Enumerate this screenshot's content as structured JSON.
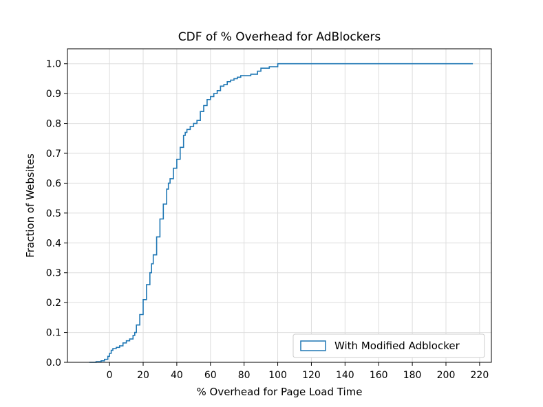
{
  "chart_data": {
    "type": "line",
    "title": "CDF of % Overhead for AdBlockers",
    "xlabel": "% Overhead for Page Load Time",
    "ylabel": "Fraction of Websites",
    "xlim": [
      -25,
      227
    ],
    "ylim": [
      0,
      1.05
    ],
    "xticks": [
      0,
      20,
      40,
      60,
      80,
      100,
      120,
      140,
      160,
      180,
      200,
      220
    ],
    "yticks": [
      0.0,
      0.1,
      0.2,
      0.3,
      0.4,
      0.5,
      0.6,
      0.7,
      0.8,
      0.9,
      1.0
    ],
    "xtick_labels": [
      "0",
      "20",
      "40",
      "60",
      "80",
      "100",
      "120",
      "140",
      "160",
      "180",
      "200",
      "220"
    ],
    "ytick_labels": [
      "0.0",
      "0.1",
      "0.2",
      "0.3",
      "0.4",
      "0.5",
      "0.6",
      "0.7",
      "0.8",
      "0.9",
      "1.0"
    ],
    "grid": true,
    "legend_position": "lower right",
    "line_style": "step",
    "series": [
      {
        "name": "With Modified Adblocker",
        "color": "#1f77b4",
        "x": [
          -12,
          -8,
          -5,
          -3,
          -1,
          0,
          1,
          2,
          4,
          6,
          8,
          10,
          12,
          14,
          15,
          16,
          18,
          20,
          22,
          24,
          25,
          26,
          28,
          30,
          32,
          34,
          35,
          36,
          38,
          40,
          42,
          44,
          45,
          46,
          48,
          50,
          52,
          54,
          56,
          58,
          60,
          62,
          64,
          66,
          68,
          70,
          72,
          74,
          76,
          78,
          80,
          84,
          88,
          90,
          95,
          100,
          110,
          140,
          180,
          216
        ],
        "y": [
          0.0,
          0.002,
          0.005,
          0.01,
          0.02,
          0.03,
          0.04,
          0.046,
          0.05,
          0.055,
          0.065,
          0.072,
          0.078,
          0.09,
          0.1,
          0.125,
          0.16,
          0.21,
          0.26,
          0.3,
          0.33,
          0.36,
          0.42,
          0.48,
          0.53,
          0.58,
          0.6,
          0.615,
          0.65,
          0.68,
          0.72,
          0.76,
          0.77,
          0.78,
          0.79,
          0.8,
          0.81,
          0.84,
          0.86,
          0.88,
          0.89,
          0.9,
          0.91,
          0.925,
          0.93,
          0.94,
          0.945,
          0.95,
          0.955,
          0.96,
          0.96,
          0.965,
          0.975,
          0.985,
          0.99,
          1.0,
          1.0,
          1.0,
          1.0,
          1.0
        ]
      }
    ]
  }
}
